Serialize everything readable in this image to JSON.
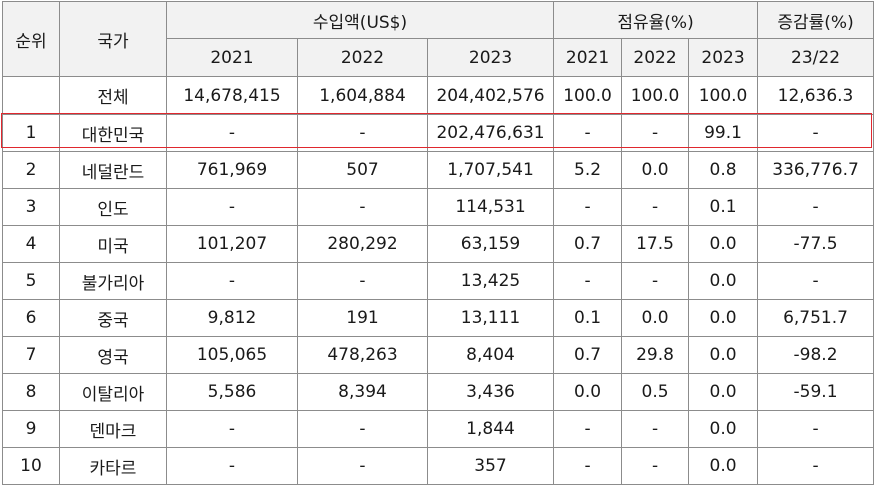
{
  "header": {
    "rank": "순위",
    "country": "국가",
    "import_amount": "수입액(US$)",
    "share": "점유율(%)",
    "change": "증감률(%)",
    "years_import": [
      "2021",
      "2022",
      "2023"
    ],
    "years_share": [
      "2021",
      "2022",
      "2023"
    ],
    "change_period": "23/22"
  },
  "highlight_color": "#e0282e",
  "rows": [
    {
      "rank": "",
      "country": "전체",
      "imp2021": "14,678,415",
      "imp2022": "1,604,884",
      "imp2023": "204,402,576",
      "sh2021": "100.0",
      "sh2022": "100.0",
      "sh2023": "100.0",
      "change": "12,636.3"
    },
    {
      "rank": "1",
      "country": "대한민국",
      "imp2021": "-",
      "imp2022": "-",
      "imp2023": "202,476,631",
      "sh2021": "-",
      "sh2022": "-",
      "sh2023": "99.1",
      "change": "-"
    },
    {
      "rank": "2",
      "country": "네덜란드",
      "imp2021": "761,969",
      "imp2022": "507",
      "imp2023": "1,707,541",
      "sh2021": "5.2",
      "sh2022": "0.0",
      "sh2023": "0.8",
      "change": "336,776.7"
    },
    {
      "rank": "3",
      "country": "인도",
      "imp2021": "-",
      "imp2022": "-",
      "imp2023": "114,531",
      "sh2021": "-",
      "sh2022": "-",
      "sh2023": "0.1",
      "change": "-"
    },
    {
      "rank": "4",
      "country": "미국",
      "imp2021": "101,207",
      "imp2022": "280,292",
      "imp2023": "63,159",
      "sh2021": "0.7",
      "sh2022": "17.5",
      "sh2023": "0.0",
      "change": "-77.5"
    },
    {
      "rank": "5",
      "country": "불가리아",
      "imp2021": "-",
      "imp2022": "-",
      "imp2023": "13,425",
      "sh2021": "-",
      "sh2022": "-",
      "sh2023": "0.0",
      "change": "-"
    },
    {
      "rank": "6",
      "country": "중국",
      "imp2021": "9,812",
      "imp2022": "191",
      "imp2023": "13,111",
      "sh2021": "0.1",
      "sh2022": "0.0",
      "sh2023": "0.0",
      "change": "6,751.7"
    },
    {
      "rank": "7",
      "country": "영국",
      "imp2021": "105,065",
      "imp2022": "478,263",
      "imp2023": "8,404",
      "sh2021": "0.7",
      "sh2022": "29.8",
      "sh2023": "0.0",
      "change": "-98.2"
    },
    {
      "rank": "8",
      "country": "이탈리아",
      "imp2021": "5,586",
      "imp2022": "8,394",
      "imp2023": "3,436",
      "sh2021": "0.0",
      "sh2022": "0.5",
      "sh2023": "0.0",
      "change": "-59.1"
    },
    {
      "rank": "9",
      "country": "덴마크",
      "imp2021": "-",
      "imp2022": "-",
      "imp2023": "1,844",
      "sh2021": "-",
      "sh2022": "-",
      "sh2023": "0.0",
      "change": "-"
    },
    {
      "rank": "10",
      "country": "카타르",
      "imp2021": "-",
      "imp2022": "-",
      "imp2023": "357",
      "sh2021": "-",
      "sh2022": "-",
      "sh2023": "0.0",
      "change": "-"
    }
  ]
}
